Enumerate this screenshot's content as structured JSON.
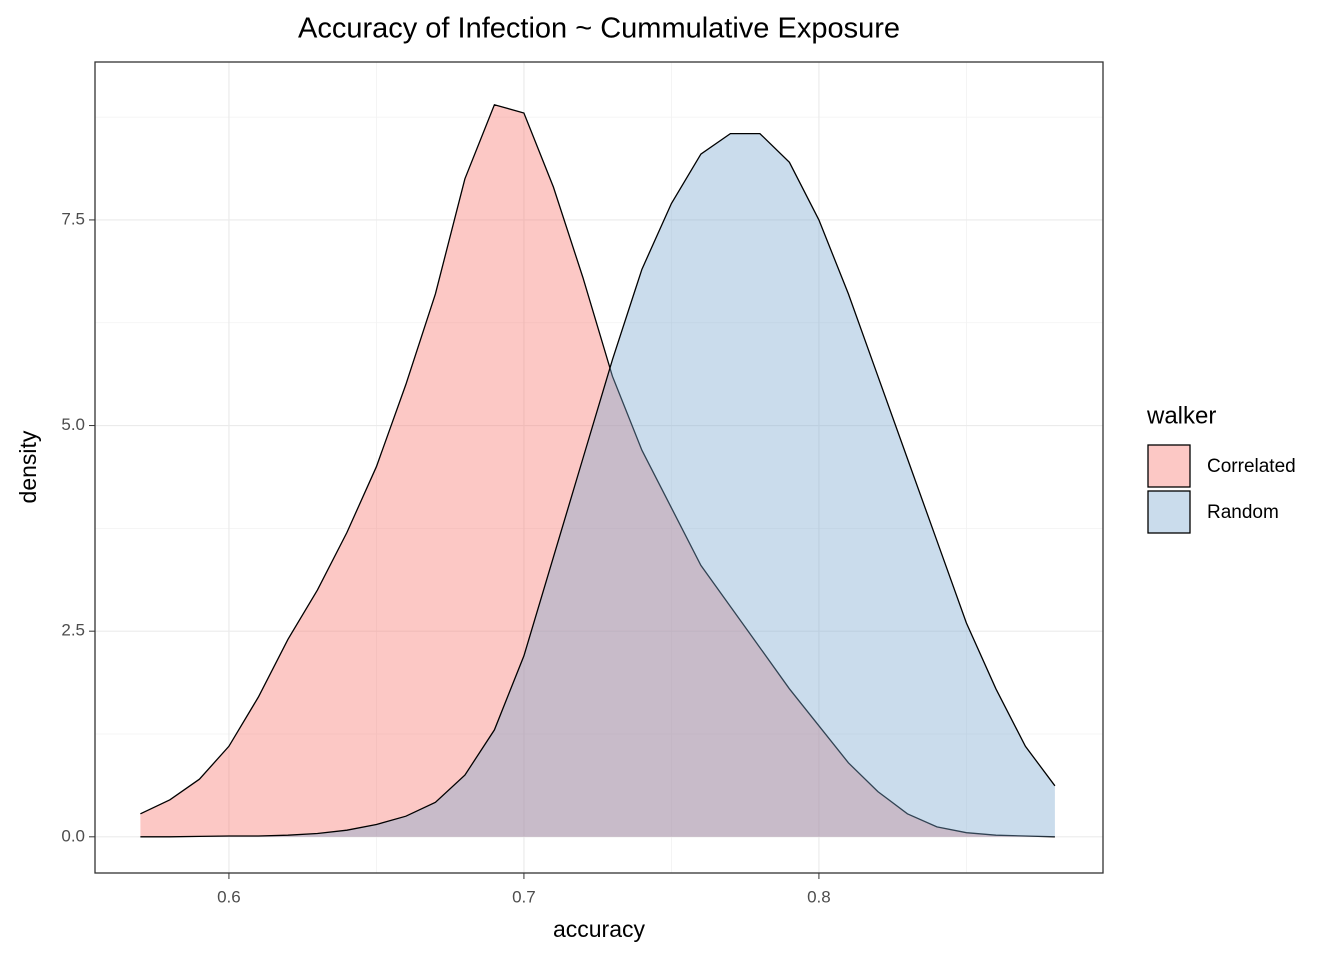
{
  "chart_data": {
    "type": "area",
    "title": "Accuracy of Infection ~ Cummulative Exposure",
    "x_label": "accuracy",
    "y_label": "density",
    "legend_title": "walker",
    "x": [
      0.57,
      0.58,
      0.59,
      0.6,
      0.61,
      0.62,
      0.63,
      0.64,
      0.65,
      0.66,
      0.67,
      0.68,
      0.69,
      0.7,
      0.71,
      0.72,
      0.73,
      0.74,
      0.75,
      0.76,
      0.77,
      0.78,
      0.79,
      0.8,
      0.81,
      0.82,
      0.83,
      0.84,
      0.85,
      0.86,
      0.87,
      0.88
    ],
    "series": [
      {
        "name": "Correlated",
        "color": "#F8766D",
        "values": [
          0.28,
          0.45,
          0.7,
          1.1,
          1.7,
          2.4,
          3.0,
          3.7,
          4.5,
          5.5,
          6.6,
          8.0,
          8.9,
          8.8,
          7.9,
          6.8,
          5.6,
          4.7,
          4.0,
          3.3,
          2.8,
          2.3,
          1.8,
          1.35,
          0.9,
          0.55,
          0.28,
          0.12,
          0.05,
          0.02,
          0.01,
          0.0
        ]
      },
      {
        "name": "Random",
        "color": "#7BA7CF",
        "values": [
          0.0,
          0.0,
          0.005,
          0.01,
          0.01,
          0.02,
          0.04,
          0.08,
          0.15,
          0.25,
          0.42,
          0.75,
          1.3,
          2.2,
          3.4,
          4.6,
          5.8,
          6.9,
          7.7,
          8.3,
          8.55,
          8.55,
          8.2,
          7.5,
          6.6,
          5.6,
          4.6,
          3.6,
          2.6,
          1.8,
          1.1,
          0.62
        ]
      }
    ],
    "xlim": [
      0.5546,
      0.8963
    ],
    "xticks": [
      0.6,
      0.7,
      0.8
    ],
    "ylim": [
      -0.44,
      9.42
    ],
    "yticks": [
      {
        "value": 0,
        "label": "0.0"
      },
      2.5,
      {
        "value": 5,
        "label": "5.0"
      },
      7.5
    ],
    "grid": true,
    "legend": "right"
  }
}
